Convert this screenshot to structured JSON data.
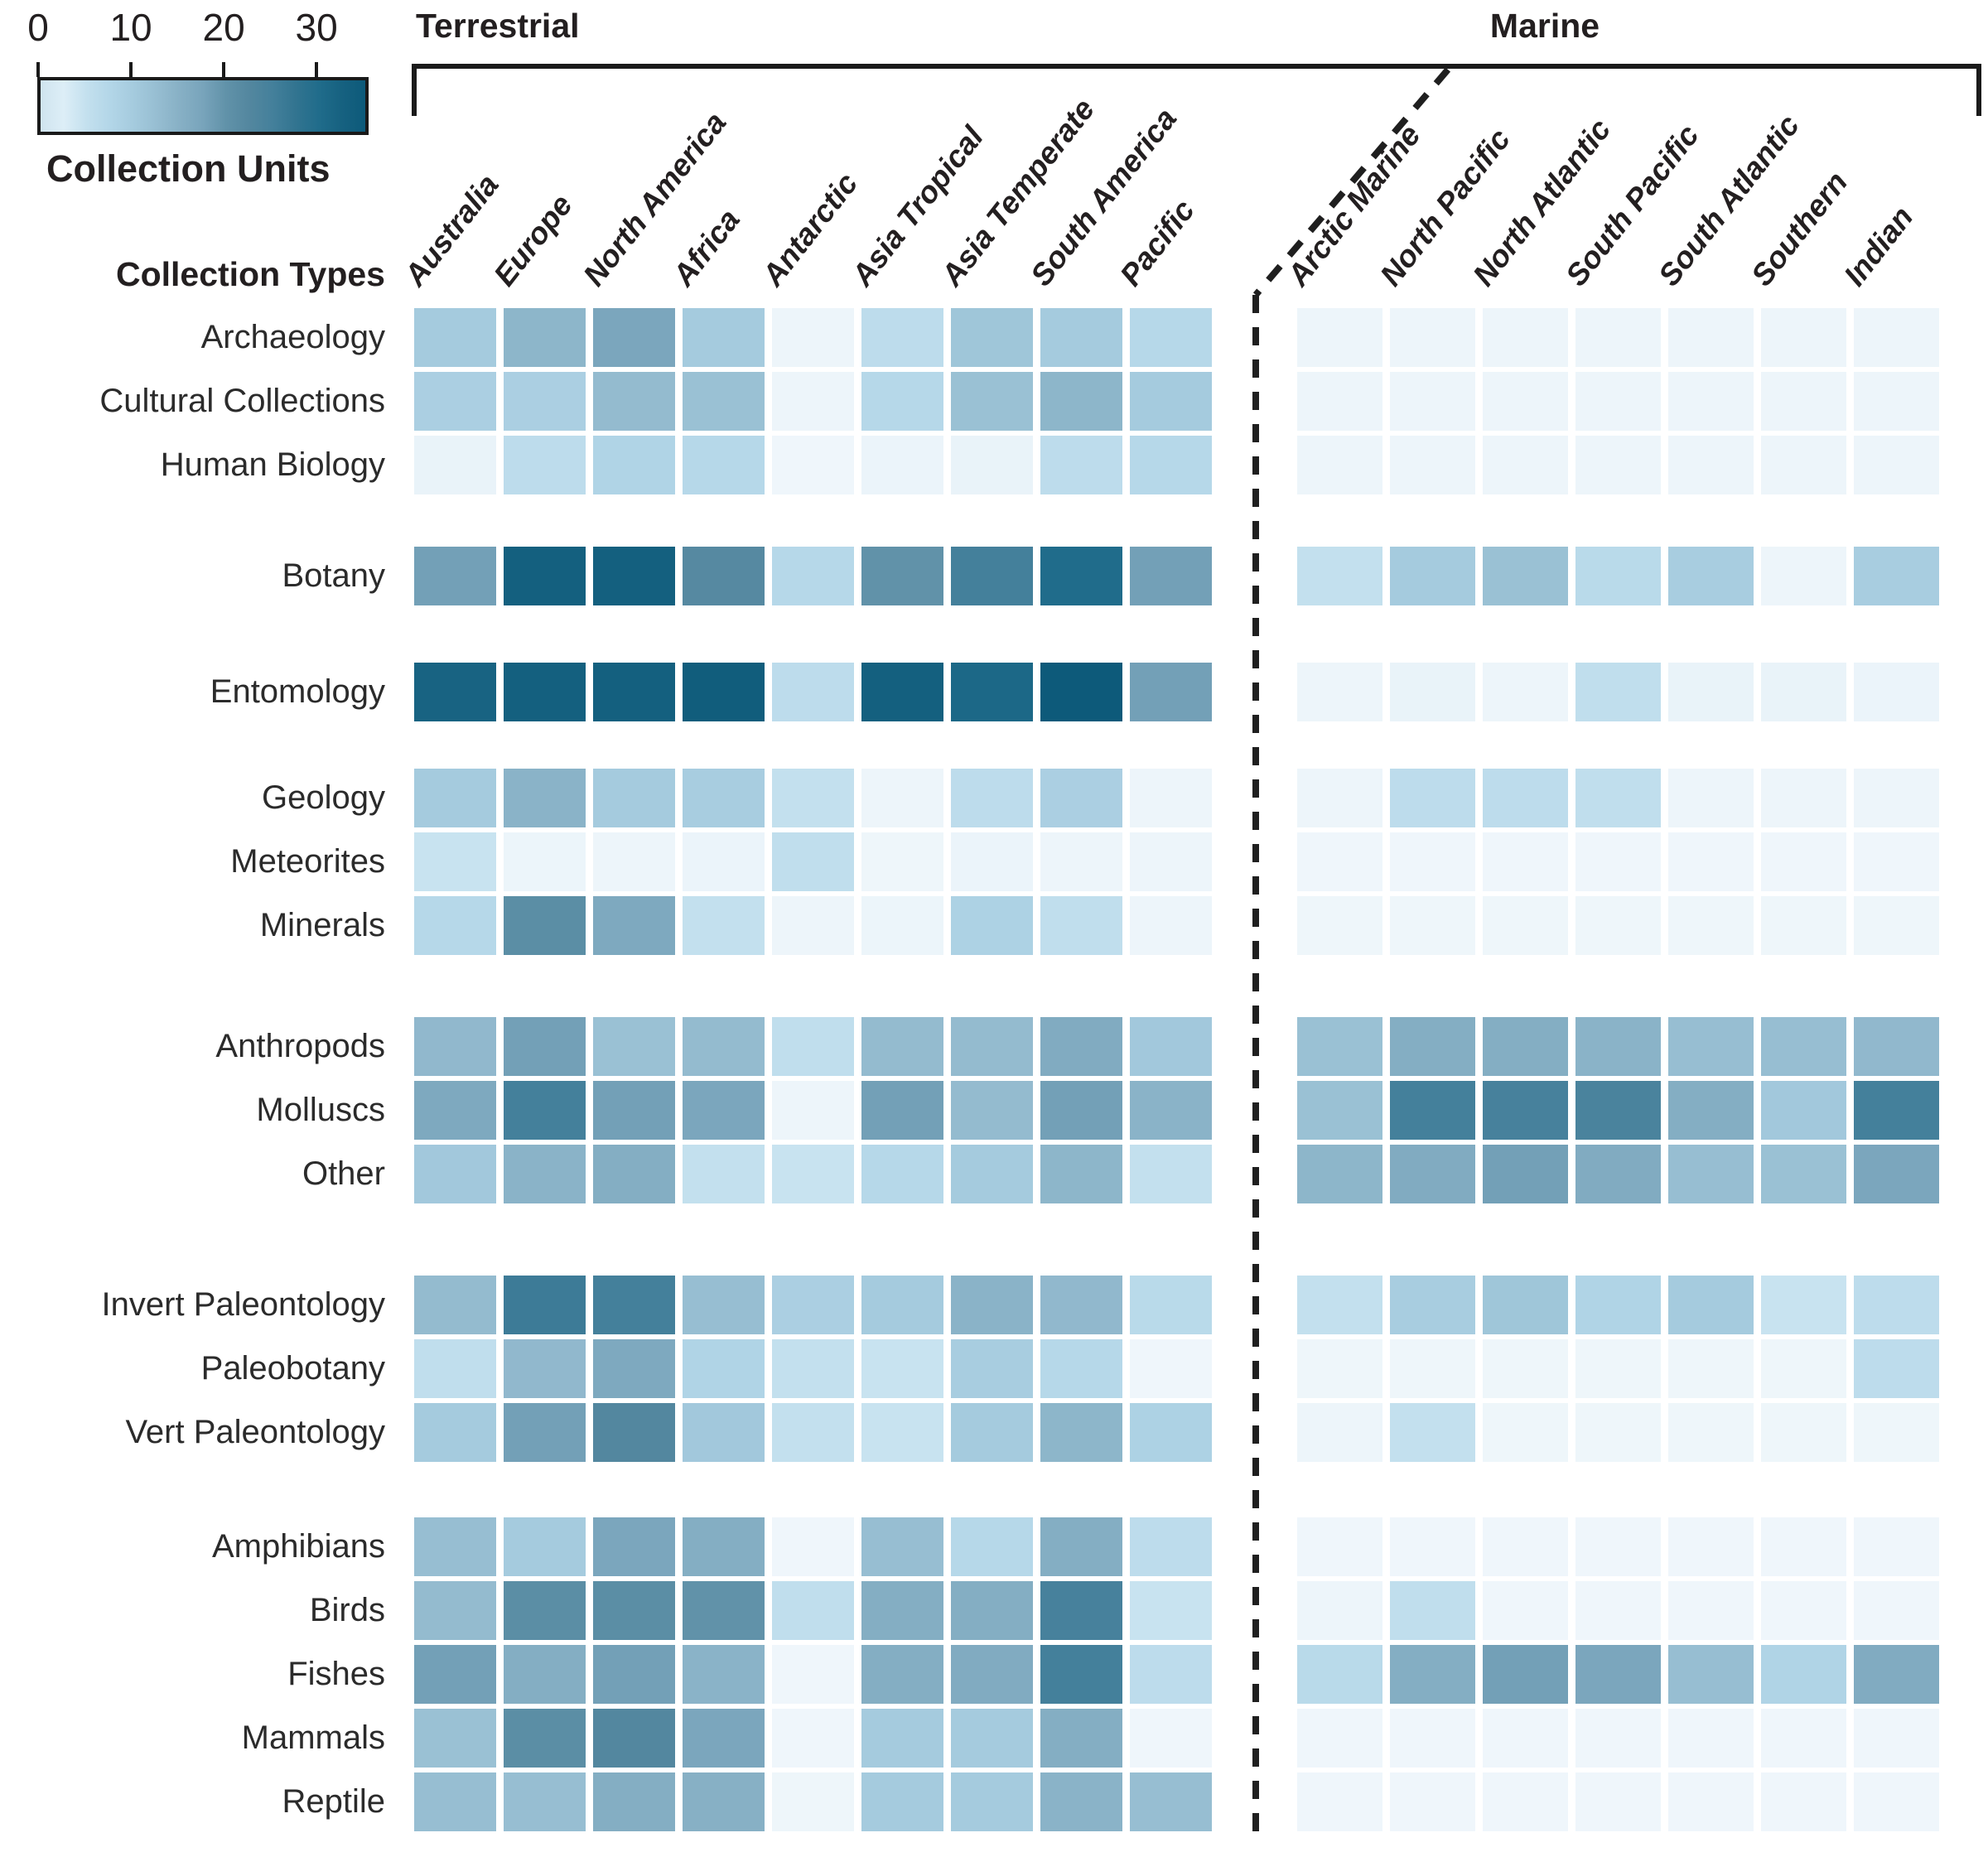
{
  "legend": {
    "title": "Collection Units",
    "ticks": [
      0,
      10,
      20,
      30
    ],
    "max": 35,
    "start_color_override": "#cfe4ef"
  },
  "colormap": {
    "anchors": [
      [
        0,
        "#f1f7fb"
      ],
      [
        2.5,
        "#ddeef7"
      ],
      [
        5,
        "#c3e0ee"
      ],
      [
        7.5,
        "#b3d6e8"
      ],
      [
        10,
        "#a5cbde"
      ],
      [
        12.5,
        "#97bed2"
      ],
      [
        15,
        "#87b0c5"
      ],
      [
        17.5,
        "#78a4bb"
      ],
      [
        20,
        "#6192a9"
      ],
      [
        22.5,
        "#53879f"
      ],
      [
        25,
        "#44809b"
      ],
      [
        27.5,
        "#327490"
      ],
      [
        30,
        "#206c8b"
      ],
      [
        32.5,
        "#166180"
      ],
      [
        35,
        "#0d5a7a"
      ]
    ]
  },
  "sections": {
    "terrestrial": "Terrestrial",
    "marine": "Marine"
  },
  "row_axis_title": "Collection Types",
  "chart_data": {
    "type": "heatmap",
    "unit": "Collection Units",
    "value_range": [
      0,
      35
    ],
    "terrestrial_columns": [
      "Australia",
      "Europe",
      "North America",
      "Africa",
      "Antarctic",
      "Asia Tropical",
      "Asia Temperate",
      "South America",
      "Pacific"
    ],
    "marine_columns": [
      "Arctic Marine",
      "North Pacific",
      "North Atlantic",
      "South Pacific",
      "South Atlantic",
      "Southern",
      "Indian"
    ],
    "row_groups": [
      {
        "rows": [
          {
            "label": "Archaeology",
            "terrestrial": [
              10,
              14,
              17,
              10,
              0.5,
              6,
              11,
              10,
              7
            ],
            "marine": [
              0.5,
              0.5,
              0.5,
              0.5,
              0.5,
              0.5,
              0.5
            ]
          },
          {
            "label": "Cultural Collections",
            "terrestrial": [
              9,
              9,
              13,
              12,
              0.5,
              7,
              12,
              14,
              10
            ],
            "marine": [
              0.5,
              0.5,
              0.5,
              0.5,
              0.5,
              0.5,
              0.5
            ]
          },
          {
            "label": "Human Biology",
            "terrestrial": [
              1,
              6,
              8,
              7,
              0.3,
              0.7,
              1,
              6,
              7
            ],
            "marine": [
              0.5,
              0.5,
              0.5,
              0.5,
              0.5,
              0.5,
              0.5
            ]
          }
        ]
      },
      {
        "rows": [
          {
            "label": "Botany",
            "terrestrial": [
              18,
              33,
              33,
              22,
              7,
              20,
              25,
              30,
              18
            ],
            "marine": [
              5,
              10,
              12,
              6.5,
              9.5,
              0.5,
              9.5
            ]
          }
        ]
      },
      {
        "rows": [
          {
            "label": "Entomology",
            "terrestrial": [
              32,
              33,
              33,
              34,
              6,
              33,
              31,
              35,
              18
            ],
            "marine": [
              0.5,
              1,
              0.5,
              5.5,
              1,
              1,
              0.7
            ]
          }
        ]
      },
      {
        "rows": [
          {
            "label": "Geology",
            "terrestrial": [
              10,
              14.5,
              10,
              9.5,
              5,
              0.5,
              6,
              9,
              0.5
            ],
            "marine": [
              0.5,
              6,
              6,
              5.5,
              0.5,
              0.5,
              0.5
            ]
          },
          {
            "label": "Meteorites",
            "terrestrial": [
              4.5,
              0.6,
              0.5,
              0.7,
              5.5,
              0.4,
              0.7,
              0.5,
              0.5
            ],
            "marine": [
              0.3,
              0.3,
              0.3,
              0.3,
              0.3,
              0.3,
              0.3
            ]
          },
          {
            "label": "Minerals",
            "terrestrial": [
              7,
              21,
              16.5,
              5,
              0.5,
              0.6,
              8.5,
              5.5,
              0.5
            ],
            "marine": [
              0.4,
              0.4,
              0.4,
              0.4,
              0.4,
              0.4,
              0.4
            ]
          }
        ]
      },
      {
        "rows": [
          {
            "label": "Anthropods",
            "terrestrial": [
              13.5,
              18,
              12,
              13,
              5.5,
              13,
              13,
              16,
              10.5
            ],
            "marine": [
              12,
              15.5,
              15.5,
              14.5,
              12.5,
              12.5,
              13.5
            ]
          },
          {
            "label": "Molluscs",
            "terrestrial": [
              16.5,
              25,
              18,
              17,
              0.5,
              18,
              13,
              18,
              14.5
            ],
            "marine": [
              12,
              25,
              24.5,
              24,
              15.5,
              10.5,
              25
            ]
          },
          {
            "label": "Other",
            "terrestrial": [
              10.5,
              14.5,
              15.5,
              5,
              4.5,
              7,
              10,
              14,
              5
            ],
            "marine": [
              14,
              16,
              18,
              16,
              12.5,
              12,
              17
            ]
          }
        ]
      },
      {
        "rows": [
          {
            "label": "Invert Paleontology",
            "terrestrial": [
              13,
              26,
              25,
              12.5,
              9,
              10,
              14.5,
              13.5,
              6.5
            ],
            "marine": [
              5,
              9.5,
              11,
              8,
              10,
              4.5,
              6
            ]
          },
          {
            "label": "Paleobotany",
            "terrestrial": [
              5.5,
              13.5,
              16.5,
              8,
              5,
              4.5,
              9.5,
              7,
              0.3
            ],
            "marine": [
              0.4,
              0.4,
              0.4,
              0.4,
              0.4,
              0.4,
              6
            ]
          },
          {
            "label": "Vert Paleontology",
            "terrestrial": [
              10,
              18,
              22.5,
              10.5,
              5,
              4.5,
              10,
              14,
              8.5
            ],
            "marine": [
              0.5,
              5,
              0.4,
              0.4,
              0.4,
              0.4,
              0.4
            ]
          }
        ]
      },
      {
        "rows": [
          {
            "label": "Amphibians",
            "terrestrial": [
              12.5,
              10,
              17,
              15.5,
              0.2,
              12.5,
              7,
              15.5,
              6
            ],
            "marine": [
              0.3,
              0.3,
              0.3,
              0.3,
              0.3,
              0.3,
              0.3
            ]
          },
          {
            "label": "Birds",
            "terrestrial": [
              13,
              21,
              21,
              20,
              5.5,
              15.5,
              15.5,
              24.5,
              4.5
            ],
            "marine": [
              0.5,
              5.5,
              0.3,
              0.3,
              0.3,
              0.3,
              0.3
            ]
          },
          {
            "label": "Fishes",
            "terrestrial": [
              18,
              15.5,
              18,
              14.5,
              0.3,
              15.5,
              16,
              25,
              6
            ],
            "marine": [
              6.5,
              15.5,
              18,
              17,
              12.5,
              8,
              16
            ]
          },
          {
            "label": "Mammals",
            "terrestrial": [
              12,
              21,
              22.5,
              17,
              0.3,
              10,
              10,
              15.5,
              0.3
            ],
            "marine": [
              0.3,
              0.3,
              0.3,
              0.3,
              0.3,
              0.3,
              0.3
            ]
          },
          {
            "label": "Reptile",
            "terrestrial": [
              12.5,
              12.5,
              15.5,
              15,
              0.4,
              10,
              10,
              14.5,
              12.5
            ],
            "marine": [
              0.3,
              0.3,
              0.3,
              0.3,
              0.3,
              0.3,
              0.3
            ]
          }
        ]
      }
    ]
  }
}
